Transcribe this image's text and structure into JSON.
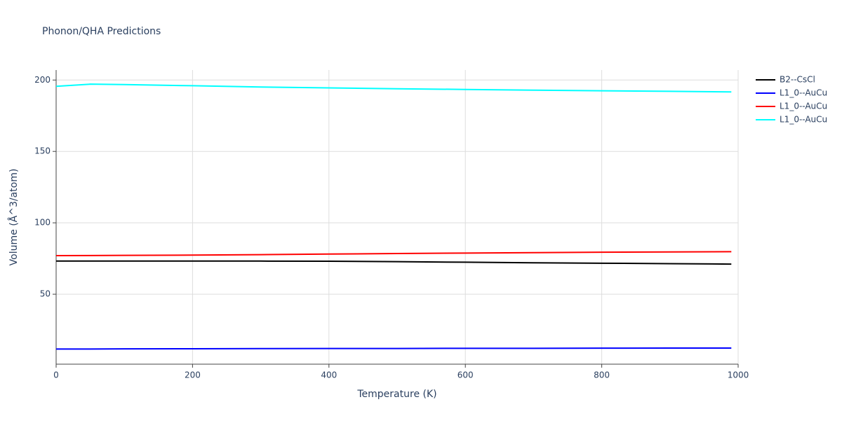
{
  "chart_data": {
    "type": "line",
    "title": "Phonon/QHA Predictions",
    "x_label": "Temperature (K)",
    "y_label": "Volume (Å^3/atom)",
    "x": [
      0,
      50,
      100,
      200,
      300,
      400,
      500,
      600,
      700,
      800,
      900,
      990
    ],
    "series": [
      {
        "name": "B2--CsCl",
        "color": "#000000",
        "values": [
          73.2,
          73.2,
          73.2,
          73.2,
          73.2,
          73.1,
          72.8,
          72.4,
          72.0,
          71.7,
          71.4,
          71.1
        ]
      },
      {
        "name": "L1_0--AuCu",
        "color": "#0000ff",
        "values": [
          11.6,
          11.6,
          11.7,
          11.8,
          11.9,
          12.0,
          12.0,
          12.1,
          12.1,
          12.2,
          12.3,
          12.3
        ]
      },
      {
        "name": "L1_0--AuCu",
        "color": "#ff0000",
        "values": [
          77.0,
          77.1,
          77.2,
          77.4,
          77.7,
          78.1,
          78.5,
          78.8,
          79.1,
          79.4,
          79.6,
          79.8
        ]
      },
      {
        "name": "L1_0--AuCu",
        "color": "#00ffff",
        "values": [
          195.6,
          197.1,
          196.8,
          196.0,
          195.1,
          194.5,
          193.9,
          193.4,
          192.9,
          192.5,
          192.1,
          191.7
        ]
      }
    ],
    "xlim": [
      0,
      1000
    ],
    "xticks": [
      0,
      200,
      400,
      600,
      800,
      1000
    ],
    "ylim": [
      1,
      207
    ],
    "yticks": [
      50,
      100,
      150,
      200
    ],
    "grid": true,
    "legend": "right"
  }
}
